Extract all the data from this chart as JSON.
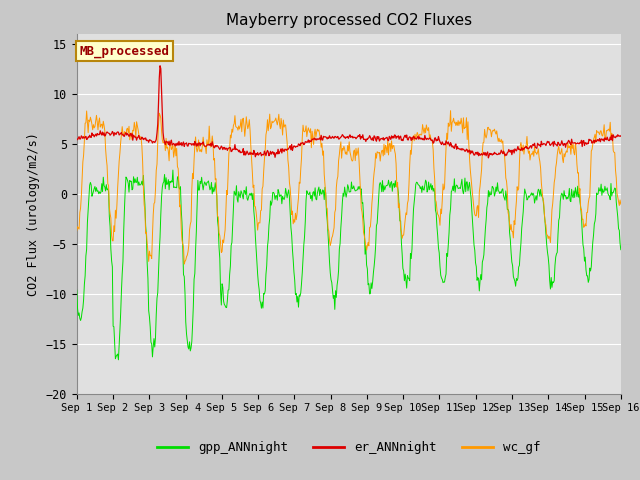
{
  "title": "Mayberry processed CO2 Fluxes",
  "ylabel": "CO2 Flux (urology/m2/s)",
  "ylim": [
    -20,
    16
  ],
  "yticks": [
    -20,
    -15,
    -10,
    -5,
    0,
    5,
    10,
    15
  ],
  "xtick_labels": [
    "Sep 1",
    "Sep 2",
    "Sep 3",
    "Sep 4",
    "Sep 5",
    "Sep 6",
    "Sep 7",
    "Sep 8",
    "Sep 9",
    "Sep 10",
    "Sep 11",
    "Sep 12",
    "Sep 13",
    "Sep 14",
    "Sep 15",
    "Sep 16"
  ],
  "color_gpp": "#00dd00",
  "color_er": "#dd0000",
  "color_wc": "#ff9900",
  "fig_facecolor": "#c8c8c8",
  "ax_facecolor": "#e0e0e0",
  "grid_color": "#ffffff",
  "legend_labels": [
    "gpp_ANNnight",
    "er_ANNnight",
    "wc_gf"
  ],
  "annotation_text": "MB_processed",
  "annotation_color": "#990000",
  "annotation_bg": "#ffffcc",
  "annotation_border": "#b8860b",
  "n_days": 15,
  "seed": 42
}
